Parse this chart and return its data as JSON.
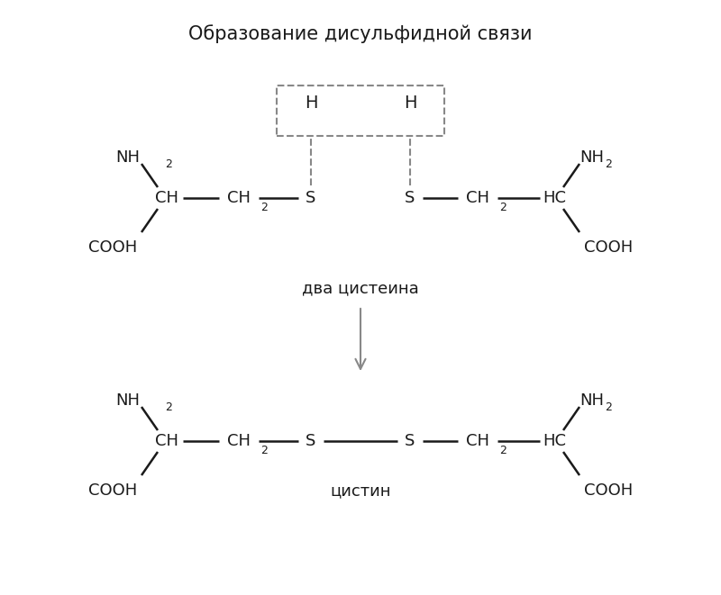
{
  "title": "Образование дисульфидной связи",
  "title_fontsize": 15,
  "label_dva_cisteina": "два цистеина",
  "label_cistin": "цистин",
  "bg_color": "#ffffff",
  "text_color": "#1a1a1a",
  "line_color": "#1a1a1a",
  "dashed_color": "#888888",
  "arrow_color": "#888888",
  "font_size_main": 13,
  "font_size_sub": 9,
  "font_size_H": 14
}
